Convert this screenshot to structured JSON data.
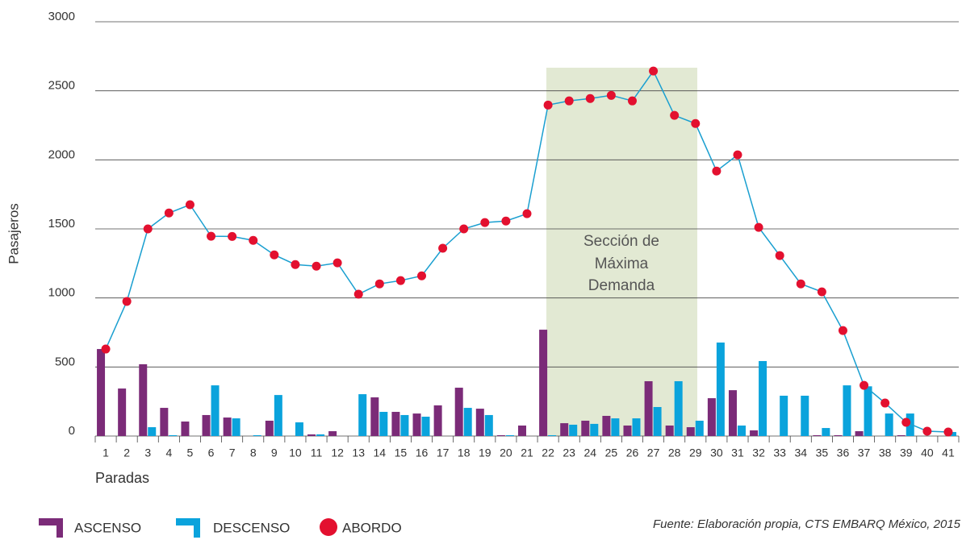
{
  "chart_data": {
    "type": "bar-line",
    "y_label": "Pasajeros",
    "x_label": "Paradas",
    "categories": [
      "1",
      "2",
      "3",
      "4",
      "5",
      "6",
      "7",
      "8",
      "9",
      "10",
      "11",
      "12",
      "13",
      "14",
      "15",
      "16",
      "17",
      "18",
      "19",
      "20",
      "21",
      "22",
      "23",
      "24",
      "25",
      "26",
      "27",
      "28",
      "29",
      "30",
      "31",
      "32",
      "33",
      "34",
      "35",
      "36",
      "37",
      "38",
      "39",
      "40",
      "41"
    ],
    "series": [
      {
        "name": "ASCENSO",
        "color": "#7b2b78",
        "kind": "bar",
        "values": [
          630,
          344,
          520,
          204,
          105,
          152,
          134,
          0,
          111,
          0,
          12,
          35,
          0,
          280,
          175,
          163,
          222,
          350,
          198,
          6,
          76,
          770,
          93,
          111,
          146,
          76,
          397,
          76,
          64,
          274,
          332,
          41,
          0,
          0,
          6,
          6,
          35,
          0,
          6,
          0,
          0
        ]
      },
      {
        "name": "DESCENSO",
        "color": "#0aa3dc",
        "kind": "bar",
        "values": [
          0,
          0,
          64,
          6,
          0,
          367,
          128,
          6,
          297,
          99,
          12,
          0,
          303,
          175,
          152,
          140,
          0,
          204,
          152,
          6,
          0,
          6,
          82,
          88,
          128,
          128,
          210,
          397,
          111,
          677,
          76,
          543,
          292,
          292,
          58,
          367,
          360,
          163,
          163,
          0,
          29
        ]
      },
      {
        "name": "ABORDO",
        "color": "#e3102f",
        "line_color": "#1a9fd0",
        "kind": "line",
        "values": [
          630,
          975,
          1500,
          1615,
          1675,
          1447,
          1445,
          1417,
          1312,
          1242,
          1230,
          1254,
          1027,
          1102,
          1126,
          1160,
          1360,
          1500,
          1546,
          1557,
          1610,
          2397,
          2427,
          2444,
          2467,
          2427,
          2643,
          2322,
          2263,
          1919,
          2036,
          1511,
          1307,
          1102,
          1044,
          764,
          367,
          239,
          99,
          35,
          29
        ]
      }
    ],
    "ylim": [
      0,
      3000
    ],
    "yticks": [
      0,
      500,
      1000,
      1500,
      2000,
      2500,
      3000
    ],
    "grid": true,
    "annotation": [
      "Sección de",
      "Máxima",
      "Demanda"
    ],
    "source": "Fuente: Elaboración propia, CTS EMBARQ México, 2015"
  }
}
